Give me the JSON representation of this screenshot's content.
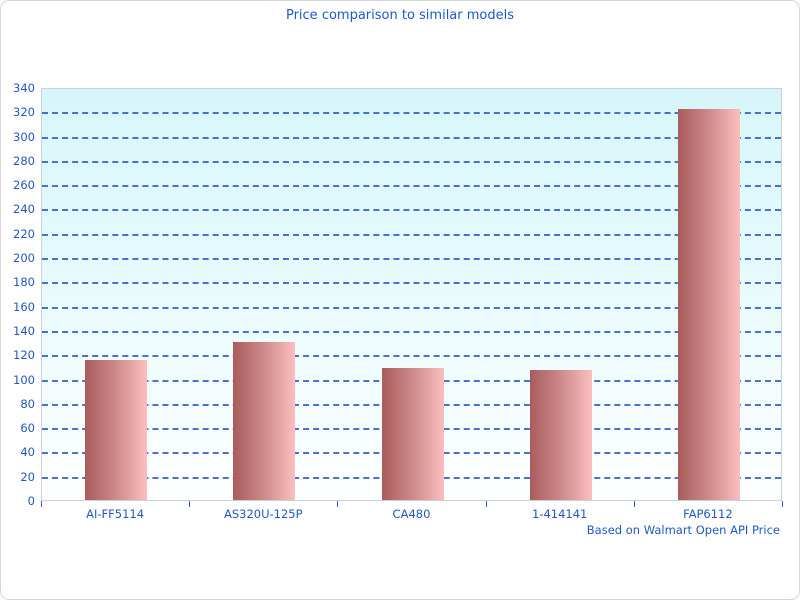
{
  "window": {
    "background": "#ffffff",
    "border_color": "#d5d5d5"
  },
  "chart": {
    "title": "Price comparison to similar models",
    "footer": "Based on Walmart Open API Price",
    "title_color": "#1e58cc",
    "label_color": "#2257c4",
    "gridline_color": "#3a62c6",
    "bar_gradient_left": "#a95c5c",
    "bar_gradient_right": "#fbbfbf",
    "plot_bg_top": "#d7f6fa",
    "plot_bg_bottom": "#ffffff"
  },
  "chart_data": {
    "type": "bar",
    "title": "Price comparison to similar models",
    "categories": [
      "AI-FF5114",
      "AS320U-125P",
      "CA480",
      "1-414141",
      "FAP6112"
    ],
    "values": [
      115,
      130,
      109,
      107,
      322
    ],
    "xlabel": "",
    "ylabel": "",
    "ylim": [
      0,
      340
    ],
    "ytick_step": 20,
    "grid": true,
    "legend": false,
    "annotation": "Based on Walmart Open API Price",
    "annotation_position": "bottom-right"
  }
}
